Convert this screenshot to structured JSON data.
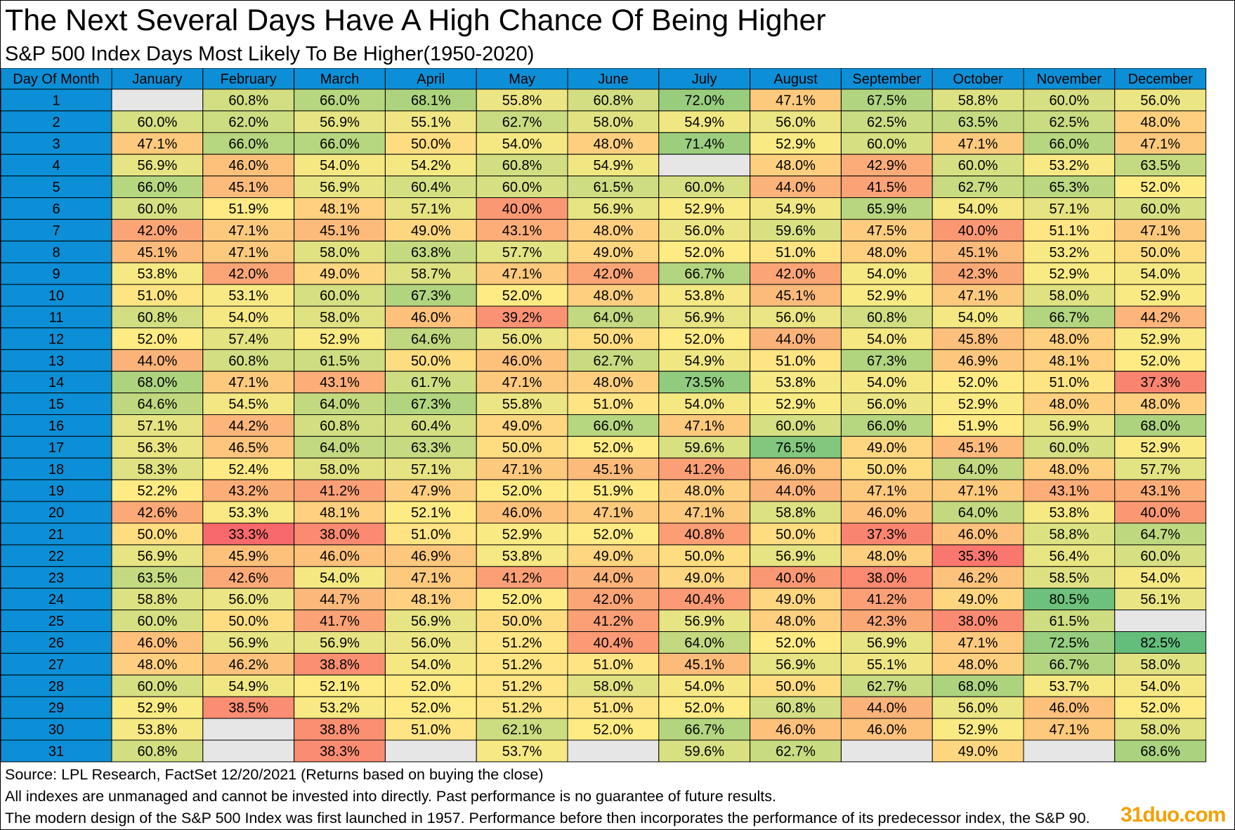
{
  "title": "The Next Several Days Have A High Chance Of Being Higher",
  "subtitle": "S&P 500 Index Days Most Likely To Be Higher(1950-2020)",
  "chart_data": {
    "type": "heatmap",
    "title": "The Next Several Days Have A High Chance Of Being Higher",
    "subtitle": "S&P 500 Index Days Most Likely To Be Higher(1950-2020)",
    "row_header": "Day Of Month",
    "columns": [
      "January",
      "February",
      "March",
      "April",
      "May",
      "June",
      "July",
      "August",
      "September",
      "October",
      "November",
      "December"
    ],
    "rows": [
      "1",
      "2",
      "3",
      "4",
      "5",
      "6",
      "7",
      "8",
      "9",
      "10",
      "11",
      "12",
      "13",
      "14",
      "15",
      "16",
      "17",
      "18",
      "19",
      "20",
      "21",
      "22",
      "23",
      "24",
      "25",
      "26",
      "27",
      "28",
      "29",
      "30",
      "31"
    ],
    "values": [
      [
        null,
        60.8,
        66.0,
        68.1,
        55.8,
        60.8,
        72.0,
        47.1,
        67.5,
        58.8,
        60.0,
        56.0
      ],
      [
        60.0,
        62.0,
        56.9,
        55.1,
        62.7,
        58.0,
        54.9,
        56.0,
        62.5,
        63.5,
        62.5,
        48.0
      ],
      [
        47.1,
        66.0,
        66.0,
        50.0,
        54.0,
        48.0,
        71.4,
        52.9,
        60.0,
        47.1,
        66.0,
        47.1
      ],
      [
        56.9,
        46.0,
        54.0,
        54.2,
        60.8,
        54.9,
        null,
        48.0,
        42.9,
        60.0,
        53.2,
        63.5
      ],
      [
        66.0,
        45.1,
        56.9,
        60.4,
        60.0,
        61.5,
        60.0,
        44.0,
        41.5,
        62.7,
        65.3,
        52.0
      ],
      [
        60.0,
        51.9,
        48.1,
        57.1,
        40.0,
        56.9,
        52.9,
        54.9,
        65.9,
        54.0,
        57.1,
        60.0
      ],
      [
        42.0,
        47.1,
        45.1,
        49.0,
        43.1,
        48.0,
        56.0,
        59.6,
        47.5,
        40.0,
        51.1,
        47.1
      ],
      [
        45.1,
        47.1,
        58.0,
        63.8,
        57.7,
        49.0,
        52.0,
        51.0,
        48.0,
        45.1,
        53.2,
        50.0
      ],
      [
        53.8,
        42.0,
        49.0,
        58.7,
        47.1,
        42.0,
        66.7,
        42.0,
        54.0,
        42.3,
        52.9,
        54.0
      ],
      [
        51.0,
        53.1,
        60.0,
        67.3,
        52.0,
        48.0,
        53.8,
        45.1,
        52.9,
        47.1,
        58.0,
        52.9
      ],
      [
        60.8,
        54.0,
        58.0,
        46.0,
        39.2,
        64.0,
        56.9,
        56.0,
        60.8,
        54.0,
        66.7,
        44.2
      ],
      [
        52.0,
        57.4,
        52.9,
        64.6,
        56.0,
        50.0,
        52.0,
        44.0,
        54.0,
        45.8,
        48.0,
        52.9
      ],
      [
        44.0,
        60.8,
        61.5,
        50.0,
        46.0,
        62.7,
        54.9,
        51.0,
        67.3,
        46.9,
        48.1,
        52.0
      ],
      [
        68.0,
        47.1,
        43.1,
        61.7,
        47.1,
        48.0,
        73.5,
        53.8,
        54.0,
        52.0,
        51.0,
        37.3
      ],
      [
        64.6,
        54.5,
        64.0,
        67.3,
        55.8,
        51.0,
        54.0,
        52.9,
        56.0,
        52.9,
        48.0,
        48.0
      ],
      [
        57.1,
        44.2,
        60.8,
        60.4,
        49.0,
        66.0,
        47.1,
        60.0,
        66.0,
        51.9,
        56.9,
        68.0
      ],
      [
        56.3,
        46.5,
        64.0,
        63.3,
        50.0,
        52.0,
        59.6,
        76.5,
        49.0,
        45.1,
        60.0,
        52.9
      ],
      [
        58.3,
        52.4,
        58.0,
        57.1,
        47.1,
        45.1,
        41.2,
        46.0,
        50.0,
        64.0,
        48.0,
        57.7
      ],
      [
        52.2,
        43.2,
        41.2,
        47.9,
        52.0,
        51.9,
        48.0,
        44.0,
        47.1,
        47.1,
        43.1,
        43.1
      ],
      [
        42.6,
        53.3,
        48.1,
        52.1,
        46.0,
        47.1,
        47.1,
        58.8,
        46.0,
        64.0,
        53.8,
        40.0
      ],
      [
        50.0,
        33.3,
        38.0,
        51.0,
        52.9,
        52.0,
        40.8,
        50.0,
        37.3,
        46.0,
        58.8,
        64.7
      ],
      [
        56.9,
        45.9,
        46.0,
        46.9,
        53.8,
        49.0,
        50.0,
        56.9,
        48.0,
        35.3,
        56.4,
        60.0
      ],
      [
        63.5,
        42.6,
        54.0,
        47.1,
        41.2,
        44.0,
        49.0,
        40.0,
        38.0,
        46.2,
        58.5,
        54.0
      ],
      [
        58.8,
        56.0,
        44.7,
        48.1,
        52.0,
        42.0,
        40.4,
        49.0,
        41.2,
        49.0,
        80.5,
        56.1
      ],
      [
        60.0,
        50.0,
        41.7,
        56.9,
        50.0,
        41.2,
        56.9,
        48.0,
        42.3,
        38.0,
        61.5,
        null
      ],
      [
        46.0,
        56.9,
        56.9,
        56.0,
        51.2,
        40.4,
        64.0,
        52.0,
        56.9,
        47.1,
        72.5,
        82.5
      ],
      [
        48.0,
        46.2,
        38.8,
        54.0,
        51.2,
        51.0,
        45.1,
        56.9,
        55.1,
        48.0,
        66.7,
        58.0
      ],
      [
        60.0,
        54.9,
        52.1,
        52.0,
        51.2,
        58.0,
        54.0,
        50.0,
        62.7,
        68.0,
        53.7,
        54.0
      ],
      [
        52.9,
        38.5,
        53.2,
        52.0,
        51.2,
        51.0,
        52.0,
        60.8,
        44.0,
        56.0,
        46.0,
        52.0
      ],
      [
        53.8,
        null,
        38.8,
        51.0,
        62.1,
        52.0,
        66.7,
        46.0,
        46.0,
        52.9,
        47.1,
        58.0
      ],
      [
        60.8,
        null,
        38.3,
        null,
        53.7,
        null,
        59.6,
        62.7,
        null,
        49.0,
        null,
        68.6
      ]
    ],
    "value_suffix": "%",
    "decimals": 1,
    "color_scale": {
      "low": "#f8696b",
      "mid": "#ffeb84",
      "high": "#63be7b"
    },
    "colors": {
      "header_bg": "#0c8fd6",
      "empty_cell": "#e6e6e6",
      "border": "#000000"
    }
  },
  "footnotes": [
    "Source: LPL Research, FactSet 12/20/2021 (Returns based on buying the close)",
    "All indexes are unmanaged and cannot be invested into directly. Past performance is no guarantee of future results.",
    "The modern design of the S&P 500 Index was first launched in 1957. Performance before then incorporates the performance of its predecessor index, the S&P 90."
  ],
  "watermark": "31duo.com"
}
